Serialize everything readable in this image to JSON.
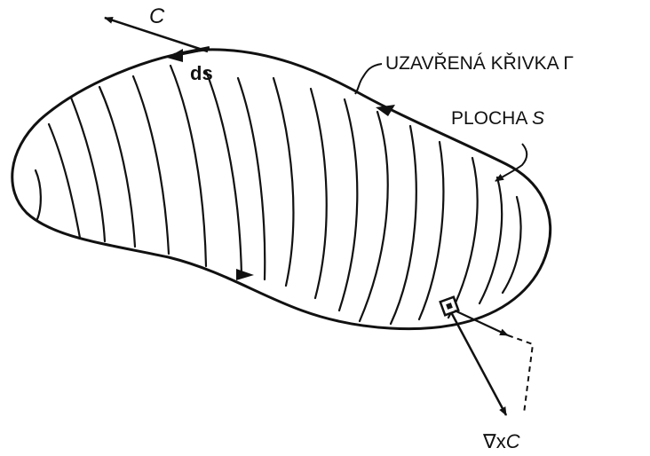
{
  "labels": {
    "vector_field": "C",
    "line_element": "ds",
    "curve_label": "UZAVŘENÁ KŘIVKA Γ",
    "surface_label_prefix": "PLOCHA ",
    "surface_label_symbol": "S",
    "curl_prefix": "∇x",
    "curl_symbol": "C"
  },
  "colors": {
    "ink": "#111111",
    "background": "#ffffff"
  }
}
